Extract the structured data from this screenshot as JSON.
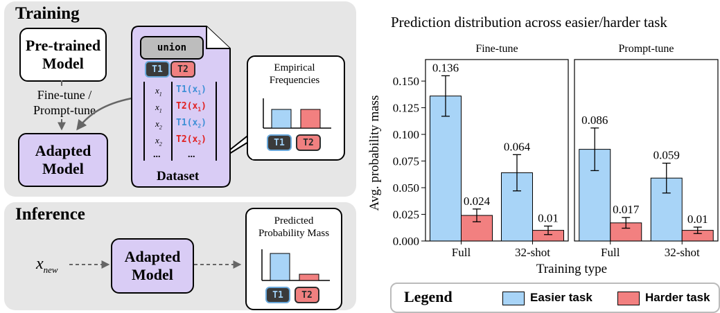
{
  "training": {
    "title": "Training",
    "pretrained": "Pre-trained\nModel",
    "finetune_label": "Fine-tune /\nPrompt-tune",
    "adapted": "Adapted\nModel",
    "union": "union",
    "tag_t1": "T1",
    "tag_t2": "T2",
    "dataset_rows": [
      {
        "x": "x",
        "sub": "1",
        "fn": "T1(x",
        "fsub": "1",
        "cls": "t1"
      },
      {
        "x": "x",
        "sub": "1",
        "fn": "T2(x",
        "fsub": "1",
        "cls": "t2"
      },
      {
        "x": "x",
        "sub": "2",
        "fn": "T1(x",
        "fsub": "2",
        "cls": "t1"
      },
      {
        "x": "x",
        "sub": "2",
        "fn": "T2(x",
        "fsub": "2",
        "cls": "t2"
      }
    ],
    "ellipsis": "...",
    "dataset_label": "Dataset",
    "empirical": "Empirical\nFrequencies"
  },
  "inference": {
    "title": "Inference",
    "x_new": "x",
    "x_new_sub": "new",
    "adapted": "Adapted\nModel",
    "predicted": "Predicted\nProbability Mass"
  },
  "colors": {
    "easier": "#a8d4f7",
    "harder": "#f28080",
    "purple": "#d9ccf5",
    "panel": "#e6e6e6"
  },
  "chart_data": {
    "type": "bar",
    "title": "Prediction distribution across easier/harder task",
    "ylabel": "Avg. probability mass",
    "xlabel": "Training type",
    "ylim": [
      0,
      0.165
    ],
    "yticks": [
      "0.000",
      "0.025",
      "0.050",
      "0.075",
      "0.100",
      "0.125",
      "0.150"
    ],
    "ytick_values": [
      0,
      0.025,
      0.05,
      0.075,
      0.1,
      0.125,
      0.15
    ],
    "facets": [
      {
        "title": "Fine-tune",
        "categories": [
          "Full",
          "32-shot"
        ],
        "series": [
          {
            "name": "Easier task",
            "values": [
              0.136,
              0.064
            ],
            "labels": [
              "0.136",
              "0.064"
            ],
            "err": [
              0.019,
              0.017
            ]
          },
          {
            "name": "Harder task",
            "values": [
              0.024,
              0.01
            ],
            "labels": [
              "0.024",
              "0.01"
            ],
            "err": [
              0.006,
              0.004
            ]
          }
        ]
      },
      {
        "title": "Prompt-tune",
        "categories": [
          "Full",
          "32-shot"
        ],
        "series": [
          {
            "name": "Easier task",
            "values": [
              0.086,
              0.059
            ],
            "labels": [
              "0.086",
              "0.059"
            ],
            "err": [
              0.02,
              0.014
            ]
          },
          {
            "name": "Harder task",
            "values": [
              0.017,
              0.01
            ],
            "labels": [
              "0.017",
              "0.01"
            ],
            "err": [
              0.005,
              0.003
            ]
          }
        ]
      }
    ],
    "legend": {
      "title": "Legend",
      "items": [
        "Easier task",
        "Harder task"
      ]
    }
  }
}
